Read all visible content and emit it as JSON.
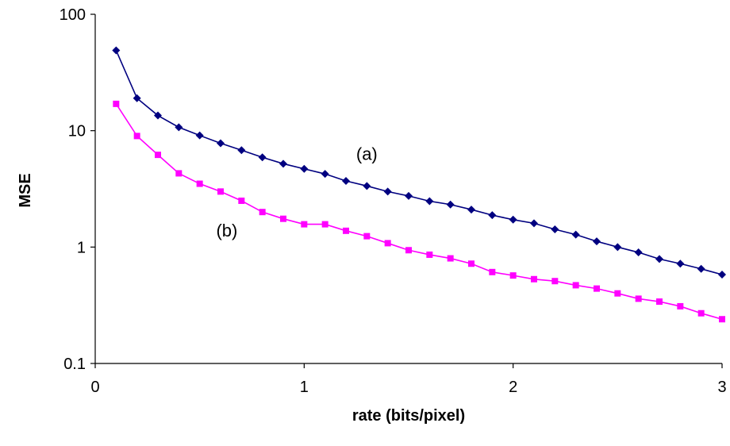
{
  "chart_data": {
    "type": "line",
    "xlabel": "rate (bits/pixel)",
    "ylabel": "MSE",
    "xlim": [
      0,
      3
    ],
    "ylim": [
      0.1,
      100
    ],
    "y_scale": "log",
    "grid": false,
    "x_ticks": [
      "0",
      "1",
      "2",
      "3"
    ],
    "y_ticks": [
      "0.1",
      "1",
      "10",
      "100"
    ],
    "x": [
      0.1,
      0.2,
      0.3,
      0.4,
      0.5,
      0.6,
      0.7,
      0.8,
      0.9,
      1.0,
      1.1,
      1.2,
      1.3,
      1.4,
      1.5,
      1.6,
      1.7,
      1.8,
      1.9,
      2.0,
      2.1,
      2.2,
      2.3,
      2.4,
      2.5,
      2.6,
      2.7,
      2.8,
      2.9,
      3.0
    ],
    "series": [
      {
        "label": "(a)",
        "color": "#000080",
        "marker": "diamond",
        "values": [
          49,
          19,
          13.5,
          10.7,
          9.1,
          7.8,
          6.8,
          5.9,
          5.2,
          4.7,
          4.25,
          3.7,
          3.35,
          3.0,
          2.75,
          2.48,
          2.32,
          2.1,
          1.88,
          1.72,
          1.6,
          1.42,
          1.28,
          1.12,
          1.0,
          0.9,
          0.79,
          0.72,
          0.65,
          0.58
        ]
      },
      {
        "label": "(b)",
        "color": "#ff00ff",
        "marker": "square",
        "values": [
          17,
          9.0,
          6.2,
          4.3,
          3.5,
          3.0,
          2.5,
          2.0,
          1.75,
          1.57,
          1.57,
          1.38,
          1.24,
          1.08,
          0.94,
          0.86,
          0.8,
          0.72,
          0.61,
          0.57,
          0.53,
          0.51,
          0.47,
          0.44,
          0.4,
          0.36,
          0.34,
          0.31,
          0.27,
          0.24
        ]
      }
    ]
  }
}
